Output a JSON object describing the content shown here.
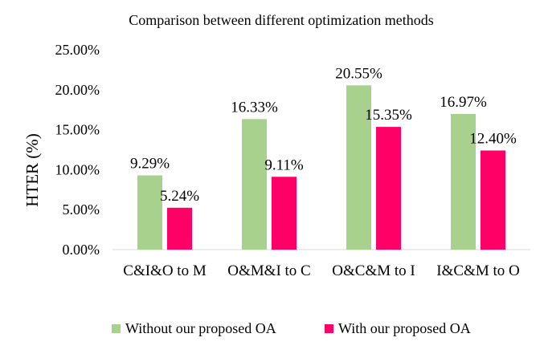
{
  "chart_data": {
    "type": "bar",
    "title": "Comparison between different optimization methods",
    "xlabel": "",
    "ylabel": "HTER (%)",
    "ylim": [
      0,
      25
    ],
    "yticks": [
      "0.00%",
      "5.00%",
      "10.00%",
      "15.00%",
      "20.00%",
      "25.00%"
    ],
    "grid": false,
    "legend_position": "bottom",
    "categories": [
      "C&I&O to M",
      "O&M&I to C",
      "O&C&M to I",
      "I&C&M to O"
    ],
    "series": [
      {
        "name": "Without our proposed OA",
        "color": "#a9d18e",
        "values": [
          9.29,
          16.33,
          20.55,
          16.97
        ],
        "labels": [
          "9.29%",
          "16.33%",
          "20.55%",
          "16.97%"
        ]
      },
      {
        "name": "With our proposed OA",
        "color": "#ff0066",
        "values": [
          5.24,
          9.11,
          15.35,
          12.4
        ],
        "labels": [
          "5.24%",
          "9.11%",
          "15.35%",
          "12.40%"
        ]
      }
    ]
  }
}
